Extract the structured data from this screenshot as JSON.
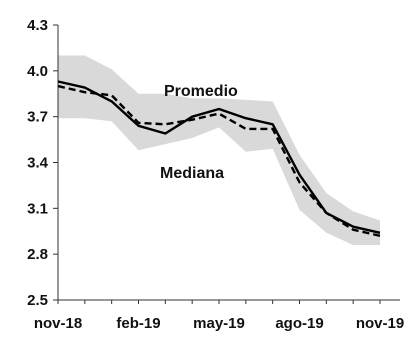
{
  "chart_data": {
    "type": "line",
    "title": "",
    "xlabel": "",
    "ylabel": "",
    "ylim": [
      2.5,
      4.3
    ],
    "yticks": [
      "2.5",
      "2.8",
      "3.1",
      "3.4",
      "3.7",
      "4.0",
      "4.3"
    ],
    "yticks_values": [
      2.5,
      2.8,
      3.1,
      3.4,
      3.7,
      4.0,
      4.3
    ],
    "xticks": [
      "nov-18",
      "feb-19",
      "may-19",
      "ago-19",
      "nov-19"
    ],
    "xticks_index": [
      0,
      3,
      6,
      9,
      12
    ],
    "x": [
      0,
      1,
      2,
      3,
      4,
      5,
      6,
      7,
      8,
      9,
      10,
      11,
      12
    ],
    "series": [
      {
        "name": "Promedio",
        "style": "solid",
        "color": "#000000",
        "values": [
          3.93,
          3.89,
          3.8,
          3.64,
          3.59,
          3.7,
          3.75,
          3.69,
          3.65,
          3.32,
          3.07,
          2.98,
          2.94
        ]
      },
      {
        "name": "Mediana",
        "style": "dashed",
        "color": "#000000",
        "values": [
          3.9,
          3.86,
          3.84,
          3.66,
          3.65,
          3.68,
          3.72,
          3.62,
          3.62,
          3.27,
          3.07,
          2.96,
          2.92
        ]
      }
    ],
    "band": {
      "color": "#d9d9d9",
      "upper": [
        4.1,
        4.1,
        4.01,
        3.85,
        3.85,
        3.82,
        3.82,
        3.81,
        3.8,
        3.45,
        3.2,
        3.08,
        3.02
      ],
      "lower": [
        3.69,
        3.69,
        3.67,
        3.48,
        3.52,
        3.56,
        3.63,
        3.47,
        3.49,
        3.09,
        2.94,
        2.86,
        2.86
      ]
    },
    "annotations": [
      "Promedio",
      "Mediana"
    ],
    "grid": false,
    "legend": "none"
  }
}
